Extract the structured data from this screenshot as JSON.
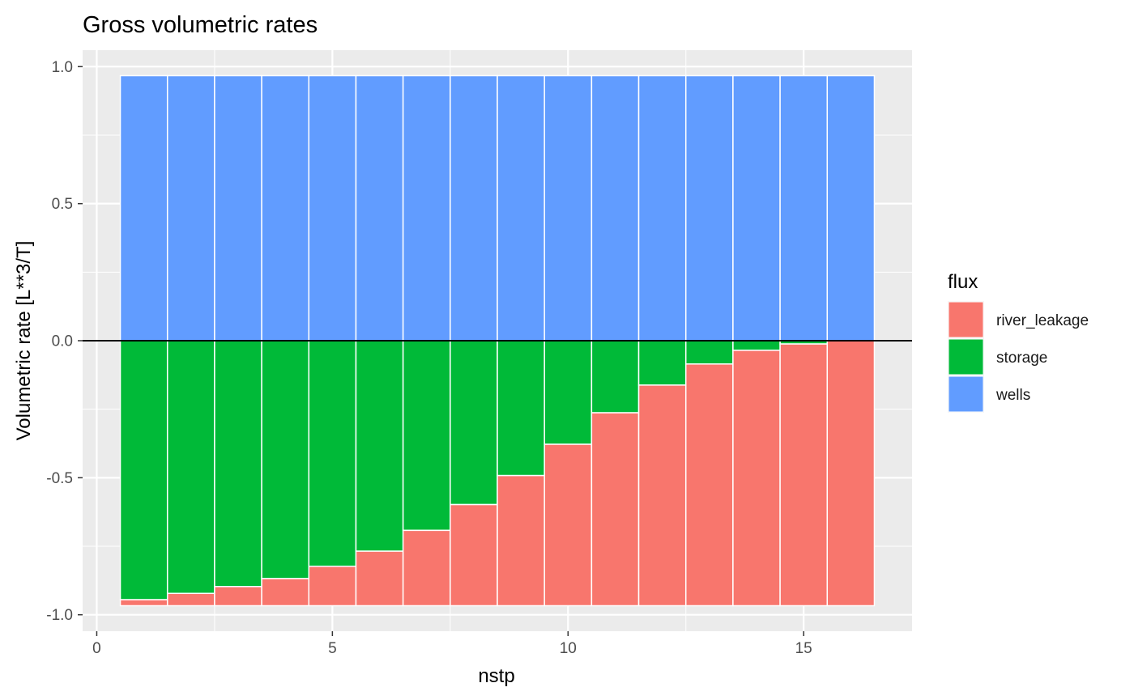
{
  "chart_data": {
    "type": "bar",
    "stacked": true,
    "title": "Gross volumetric rates",
    "xlabel": "nstp",
    "ylabel": "Volumetric rate [L**3/T]",
    "x": [
      1,
      2,
      3,
      4,
      5,
      6,
      7,
      8,
      9,
      10,
      11,
      12,
      13,
      14,
      15,
      16
    ],
    "xlim": [
      -0.3,
      17.3
    ],
    "ylim": [
      -1.06,
      1.06
    ],
    "xticks": [
      0,
      5,
      10,
      15
    ],
    "yticks": [
      1.0,
      0.5,
      0.0,
      -0.5,
      -1.0
    ],
    "ytick_labels": [
      "1.0",
      "0.5",
      "0.0",
      "-0.5",
      "-1.0"
    ],
    "grid": true,
    "legend": {
      "title": "flux",
      "position": "right",
      "entries": [
        "river_leakage",
        "storage",
        "wells"
      ]
    },
    "series": [
      {
        "name": "wells",
        "color": "#619CFF",
        "values": [
          0.967,
          0.967,
          0.967,
          0.967,
          0.967,
          0.967,
          0.967,
          0.967,
          0.967,
          0.967,
          0.967,
          0.967,
          0.967,
          0.967,
          0.967,
          0.967
        ]
      },
      {
        "name": "storage",
        "color": "#00BA38",
        "values": [
          -0.945,
          -0.922,
          -0.897,
          -0.868,
          -0.823,
          -0.768,
          -0.692,
          -0.598,
          -0.492,
          -0.378,
          -0.263,
          -0.162,
          -0.085,
          -0.035,
          -0.012,
          0.0
        ]
      },
      {
        "name": "river_leakage",
        "color": "#F8766D",
        "values": [
          -0.022,
          -0.045,
          -0.07,
          -0.099,
          -0.144,
          -0.199,
          -0.275,
          -0.369,
          -0.475,
          -0.589,
          -0.704,
          -0.805,
          -0.882,
          -0.932,
          -0.955,
          -0.967
        ]
      }
    ],
    "hline": {
      "y": 0,
      "color": "#000000"
    }
  }
}
